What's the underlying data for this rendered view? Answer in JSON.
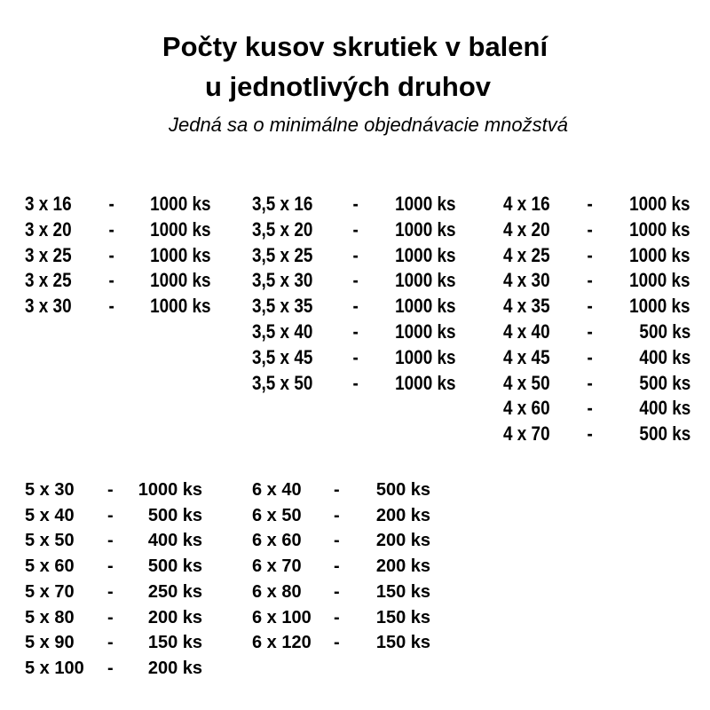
{
  "title": {
    "line1": "Počty kusov skrutiek v balení",
    "line2": "u jednotlivých druhov",
    "subtitle": "Jedná sa o minimálne objednávacie množstvá"
  },
  "groups": [
    {
      "rows": [
        [
          "3 x 16",
          "1000 ks"
        ],
        [
          "3 x 20",
          "1000 ks"
        ],
        [
          "3 x 25",
          "1000 ks"
        ],
        [
          "3 x 25",
          "1000 ks"
        ],
        [
          "3 x 30",
          "1000 ks"
        ]
      ]
    },
    {
      "rows": [
        [
          "3,5 x 16",
          "1000 ks"
        ],
        [
          "3,5 x 20",
          "1000 ks"
        ],
        [
          "3,5 x 25",
          "1000 ks"
        ],
        [
          "3,5 x 30",
          "1000 ks"
        ],
        [
          "3,5 x 35",
          "1000 ks"
        ],
        [
          "3,5 x 40",
          "1000 ks"
        ],
        [
          "3,5 x 45",
          "1000 ks"
        ],
        [
          "3,5 x 50",
          "1000 ks"
        ]
      ]
    },
    {
      "rows": [
        [
          "4 x 16",
          "1000 ks"
        ],
        [
          "4 x 20",
          "1000 ks"
        ],
        [
          "4 x 25",
          "1000 ks"
        ],
        [
          "4 x 30",
          "1000 ks"
        ],
        [
          "4 x 35",
          "1000 ks"
        ],
        [
          "4 x 40",
          "500 ks"
        ],
        [
          "4 x 45",
          "400 ks"
        ],
        [
          "4 x 50",
          "500 ks"
        ],
        [
          "4 x 60",
          "400 ks"
        ],
        [
          "4 x 70",
          "500 ks"
        ]
      ]
    },
    {
      "rows": [
        [
          "5 x 30",
          "1000 ks"
        ],
        [
          "5 x 40",
          "500 ks"
        ],
        [
          "5 x 50",
          "400 ks"
        ],
        [
          "5 x 60",
          "500 ks"
        ],
        [
          "5 x 70",
          "250 ks"
        ],
        [
          "5 x 80",
          "200 ks"
        ],
        [
          "5 x 90",
          "150 ks"
        ],
        [
          "5 x 100",
          "200 ks"
        ]
      ]
    },
    {
      "rows": [
        [
          "6 x 40",
          "500 ks"
        ],
        [
          "6 x 50",
          "200 ks"
        ],
        [
          "6 x 60",
          "200 ks"
        ],
        [
          "6 x 70",
          "200 ks"
        ],
        [
          "6 x 80",
          "150 ks"
        ],
        [
          "6 x 100",
          "150 ks"
        ],
        [
          "6 x 120",
          "150 ks"
        ]
      ]
    }
  ],
  "separator": "-"
}
